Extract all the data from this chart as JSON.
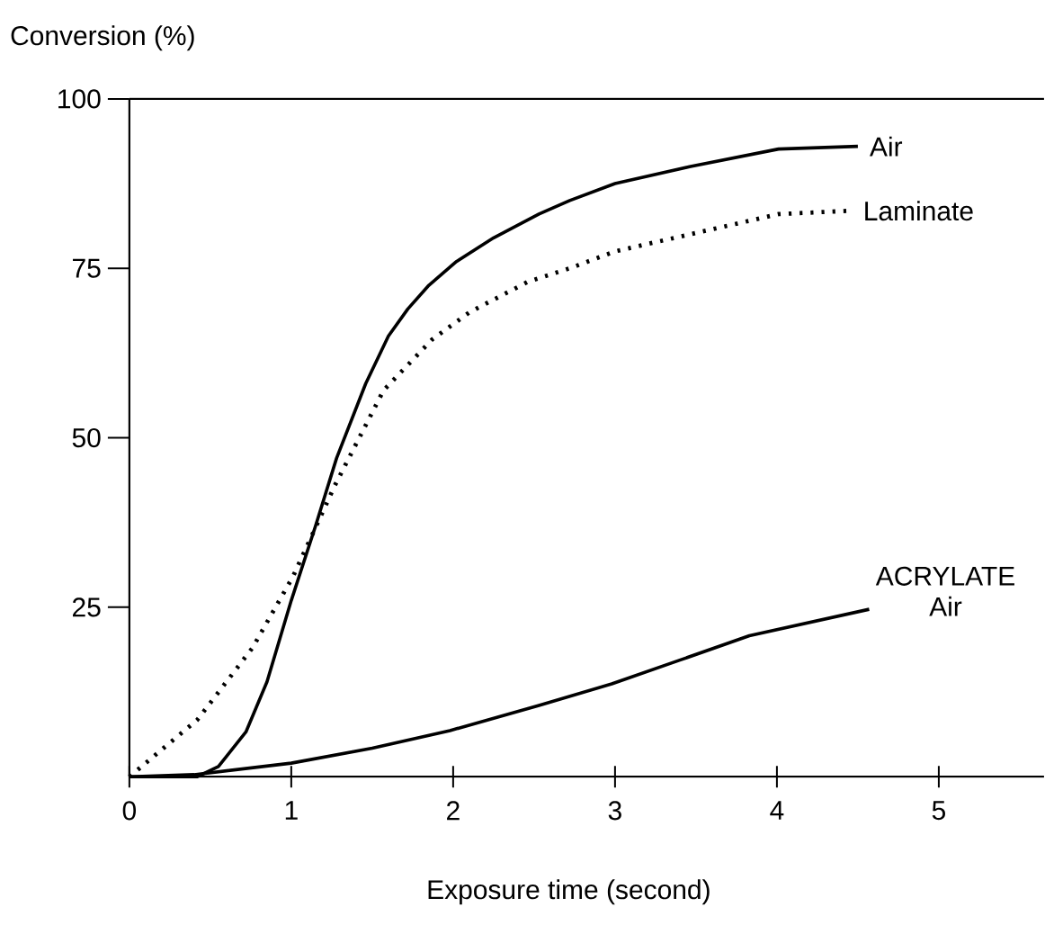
{
  "chart_data": {
    "type": "line",
    "xlabel": "Exposure time (second)",
    "ylabel": "Conversion (%)",
    "xlim": [
      0,
      5.65
    ],
    "ylim": [
      0,
      100
    ],
    "xticks": [
      0,
      1,
      2,
      3,
      4,
      5
    ],
    "yticks": [
      25,
      50,
      75,
      100
    ],
    "series": [
      {
        "name": "Air",
        "color": "#000000",
        "line_style": "solid",
        "x": [
          0,
          0.42,
          0.55,
          0.72,
          0.85,
          1.0,
          1.15,
          1.28,
          1.46,
          1.6,
          1.72,
          1.85,
          2.02,
          2.25,
          2.53,
          2.72,
          3.0,
          3.46,
          4.01,
          4.5
        ],
        "values": [
          0,
          0,
          1.5,
          6.6,
          14,
          26,
          37,
          47,
          58,
          65,
          69,
          72.5,
          76,
          79.5,
          83,
          85,
          87.5,
          90,
          92.6,
          93
        ]
      },
      {
        "name": "Laminate",
        "color": "#000000",
        "line_style": "dotted",
        "x": [
          0,
          0.05,
          0.42,
          0.76,
          1.01,
          1.27,
          1.57,
          1.87,
          2.1,
          2.46,
          2.72,
          3.0,
          3.46,
          4.01,
          4.46
        ],
        "values": [
          0,
          1,
          8.4,
          19,
          29.5,
          43,
          57,
          64.5,
          68.5,
          73,
          75,
          77.5,
          80,
          83,
          83.5
        ]
      },
      {
        "name": "ACRYLATE Air",
        "color": "#000000",
        "line_style": "solid",
        "x": [
          0,
          0.4,
          1.0,
          1.5,
          1.98,
          2.53,
          2.98,
          3.4,
          3.83,
          4.57
        ],
        "values": [
          0,
          0.3,
          2,
          4.2,
          6.8,
          10.5,
          13.7,
          17.2,
          20.8,
          24.7
        ]
      }
    ]
  }
}
